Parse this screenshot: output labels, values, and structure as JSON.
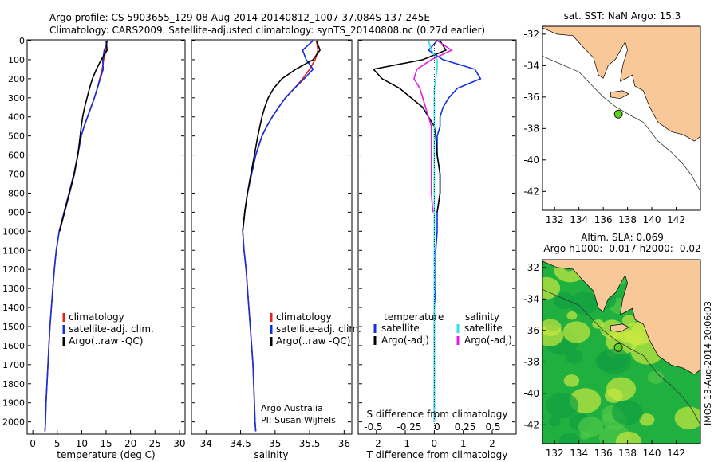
{
  "header": {
    "line1": "Argo profile: CS 5903655_129 08-Aug-2014 20140812_1007 37.084S 137.245E",
    "line2": "Climatology: CARS2009. Satellite-adjusted climatology: synTS_20140808.nc (0.27d earlier)"
  },
  "colors": {
    "climatology": "#e8201a",
    "satellite": "#1030e0",
    "argo": "#000000",
    "satellite_diff": "#30e0f0",
    "argo_diff": "#e020e0",
    "land": "#f8c898",
    "sea_low": "#20b040",
    "sea_high": "#f0f040"
  },
  "chart_data": [
    {
      "id": "temperature",
      "type": "line",
      "xlabel": "temperature (deg C)",
      "ylabel": "",
      "xlim": [
        -1,
        31
      ],
      "ylim": [
        2060,
        0
      ],
      "xticks": [
        "0",
        "5",
        "10",
        "15",
        "20",
        "25",
        "30"
      ],
      "yticks": [
        "0",
        "100",
        "200",
        "300",
        "400",
        "500",
        "600",
        "700",
        "800",
        "900",
        "1000",
        "1100",
        "1200",
        "1300",
        "1400",
        "1500",
        "1600",
        "1700",
        "1800",
        "1900",
        "2000"
      ],
      "depth": [
        0,
        50,
        100,
        150,
        200,
        250,
        300,
        350,
        400,
        450,
        500,
        600,
        700,
        800,
        900,
        1000,
        1100,
        1200,
        1300,
        1400,
        1500,
        1600,
        1700,
        1800,
        1900,
        2000,
        2050
      ],
      "series": [
        {
          "name": "climatology",
          "values": [
            15.2,
            15.0,
            14.5,
            14.2,
            13.7,
            13.2,
            12.6,
            11.9,
            11.2,
            10.5,
            9.9,
            9.2,
            8.4,
            7.4,
            6.4,
            5.4,
            4.8,
            4.4,
            4.1,
            3.8,
            3.5,
            3.3,
            3.1,
            2.9,
            2.7,
            2.6,
            2.5
          ]
        },
        {
          "name": "satellite-adj. clim.",
          "values": [
            15.3,
            14.6,
            14.3,
            14.4,
            13.8,
            13.2,
            12.6,
            11.9,
            11.2,
            10.5,
            9.9,
            9.2,
            8.4,
            7.4,
            6.4,
            5.4,
            4.8,
            4.4,
            4.1,
            3.8,
            3.5,
            3.3,
            3.1,
            2.9,
            2.7,
            2.6,
            2.5
          ]
        },
        {
          "name": "Argo(..raw -QC)",
          "values": [
            15.0,
            15.2,
            14.0,
            13.0,
            12.2,
            11.6,
            11.1,
            10.6,
            10.2,
            9.9,
            9.7,
            9.2,
            8.5,
            7.5,
            6.5,
            5.5
          ]
        }
      ],
      "legend": [
        "climatology",
        "satellite-adj. clim.",
        "Argo(..raw -QC)"
      ]
    },
    {
      "id": "salinity",
      "type": "line",
      "xlabel": "salinity",
      "xlim": [
        33.8,
        36.1
      ],
      "ylim": [
        2060,
        0
      ],
      "xticks": [
        "34",
        "34.5",
        "35",
        "35.5",
        "36"
      ],
      "depth": [
        0,
        50,
        100,
        150,
        200,
        250,
        300,
        350,
        400,
        450,
        500,
        600,
        700,
        800,
        900,
        1000,
        1100,
        1200,
        1300,
        1400,
        1500,
        1600,
        1700,
        1800,
        1900,
        2000,
        2050
      ],
      "series": [
        {
          "name": "climatology",
          "values": [
            35.6,
            35.62,
            35.58,
            35.5,
            35.4,
            35.28,
            35.15,
            35.05,
            34.96,
            34.88,
            34.81,
            34.72,
            34.66,
            34.6,
            34.56,
            34.53,
            34.55,
            34.58,
            34.6,
            34.62,
            34.64,
            34.66,
            34.68,
            34.69,
            34.7,
            34.71,
            34.72
          ]
        },
        {
          "name": "satellite-adj. clim.",
          "values": [
            35.55,
            35.4,
            35.45,
            35.55,
            35.42,
            35.28,
            35.15,
            35.05,
            34.96,
            34.88,
            34.81,
            34.72,
            34.66,
            34.6,
            34.56,
            34.53,
            34.55,
            34.58,
            34.6,
            34.62,
            34.64,
            34.66,
            34.68,
            34.69,
            34.7,
            34.71,
            34.72
          ]
        },
        {
          "name": "Argo(..raw -QC)",
          "values": [
            35.6,
            35.65,
            35.55,
            35.3,
            35.1,
            34.98,
            34.9,
            34.85,
            34.81,
            34.78,
            34.75,
            34.7,
            34.65,
            34.6,
            34.56,
            34.53
          ]
        }
      ],
      "legend": [
        "climatology",
        "satellite-adj. clim.",
        "Argo(..raw -QC)"
      ],
      "annotations": [
        "Argo Australia",
        "PI: Susan Wijffels"
      ]
    },
    {
      "id": "difference",
      "type": "line",
      "xlabel": "T difference from climatology",
      "xlabel2": "S difference from climatology",
      "xlim": [
        -2.6,
        2.8
      ],
      "ylim": [
        2060,
        0
      ],
      "xticks": [
        "-2",
        "-1",
        "0",
        "1",
        "2"
      ],
      "xticks2": [
        "-0.5",
        "-0.25",
        "0",
        "0.25",
        "0.5"
      ],
      "depth": [
        0,
        50,
        100,
        150,
        200,
        250,
        300,
        350,
        400,
        450,
        500,
        600,
        700,
        800,
        900,
        1000,
        1100,
        1200,
        1300,
        1400,
        1500,
        1600,
        1700,
        1800,
        1900,
        2000
      ],
      "series": [
        {
          "name": "temperature satellite",
          "values": [
            0.1,
            -0.2,
            0.3,
            1.4,
            1.6,
            0.8,
            0.5,
            0.3,
            0.2,
            0.2,
            0.1,
            0.1,
            0.2,
            0.2,
            0.1,
            0.1,
            0.05,
            0.05,
            0.05,
            0.0,
            0.0,
            0.0,
            0.0,
            0.0,
            0.0,
            0.0
          ]
        },
        {
          "name": "temperature Argo(-adj)",
          "values": [
            0.2,
            0.4,
            -0.4,
            -2.1,
            -1.8,
            -1.2,
            -0.8,
            -0.4,
            -0.2,
            0.0,
            0.05,
            0.1,
            0.2,
            0.2,
            0.1
          ]
        },
        {
          "name": "salinity satellite",
          "values": [
            -0.2,
            -0.1,
            0.1,
            0.1,
            0.05,
            0.0,
            0.0,
            0.0,
            0.0,
            0.0,
            0.0,
            0.0,
            0.0,
            0.0,
            0.0,
            0.0,
            0.0,
            0.0,
            0.0,
            0.0,
            0.0,
            0.0,
            0.0,
            0.0,
            0.0,
            0.0
          ]
        },
        {
          "name": "salinity Argo(-adj)",
          "values": [
            0.1,
            0.6,
            -0.1,
            -0.6,
            -0.7,
            -0.5,
            -0.4,
            -0.3,
            -0.2,
            -0.1,
            -0.1,
            -0.1,
            -0.1,
            -0.1,
            -0.05
          ]
        }
      ],
      "legend_titles": [
        "temperature",
        "salinity"
      ],
      "legend": [
        "satellite",
        "Argo(-adj)",
        "satellite",
        "Argo(-adj)"
      ]
    },
    {
      "id": "map_sst",
      "type": "map",
      "title": "sat. SST: NaN Argo: 15.3",
      "xlim": [
        131,
        144
      ],
      "ylim": [
        -43.2,
        -31.5
      ],
      "xticks": [
        "132",
        "134",
        "136",
        "138",
        "140",
        "142"
      ],
      "yticks": [
        "-32",
        "-34",
        "-36",
        "-38",
        "-40",
        "-42"
      ],
      "float_position": [
        137.245,
        -37.084
      ]
    },
    {
      "id": "map_sla",
      "type": "map",
      "title": "Altim. SLA: 0.069",
      "subtitle": "Argo h1000: -0.017 h2000: -0.02",
      "side_label": "IMOS 13-Aug-2014 20:06:03",
      "xlim": [
        131,
        144
      ],
      "ylim": [
        -43.2,
        -31.5
      ],
      "xticks": [
        "132",
        "134",
        "136",
        "138",
        "140",
        "142"
      ],
      "yticks": [
        "-32",
        "-34",
        "-36",
        "-38",
        "-40",
        "-42"
      ],
      "float_position": [
        137.245,
        -37.084
      ]
    }
  ]
}
